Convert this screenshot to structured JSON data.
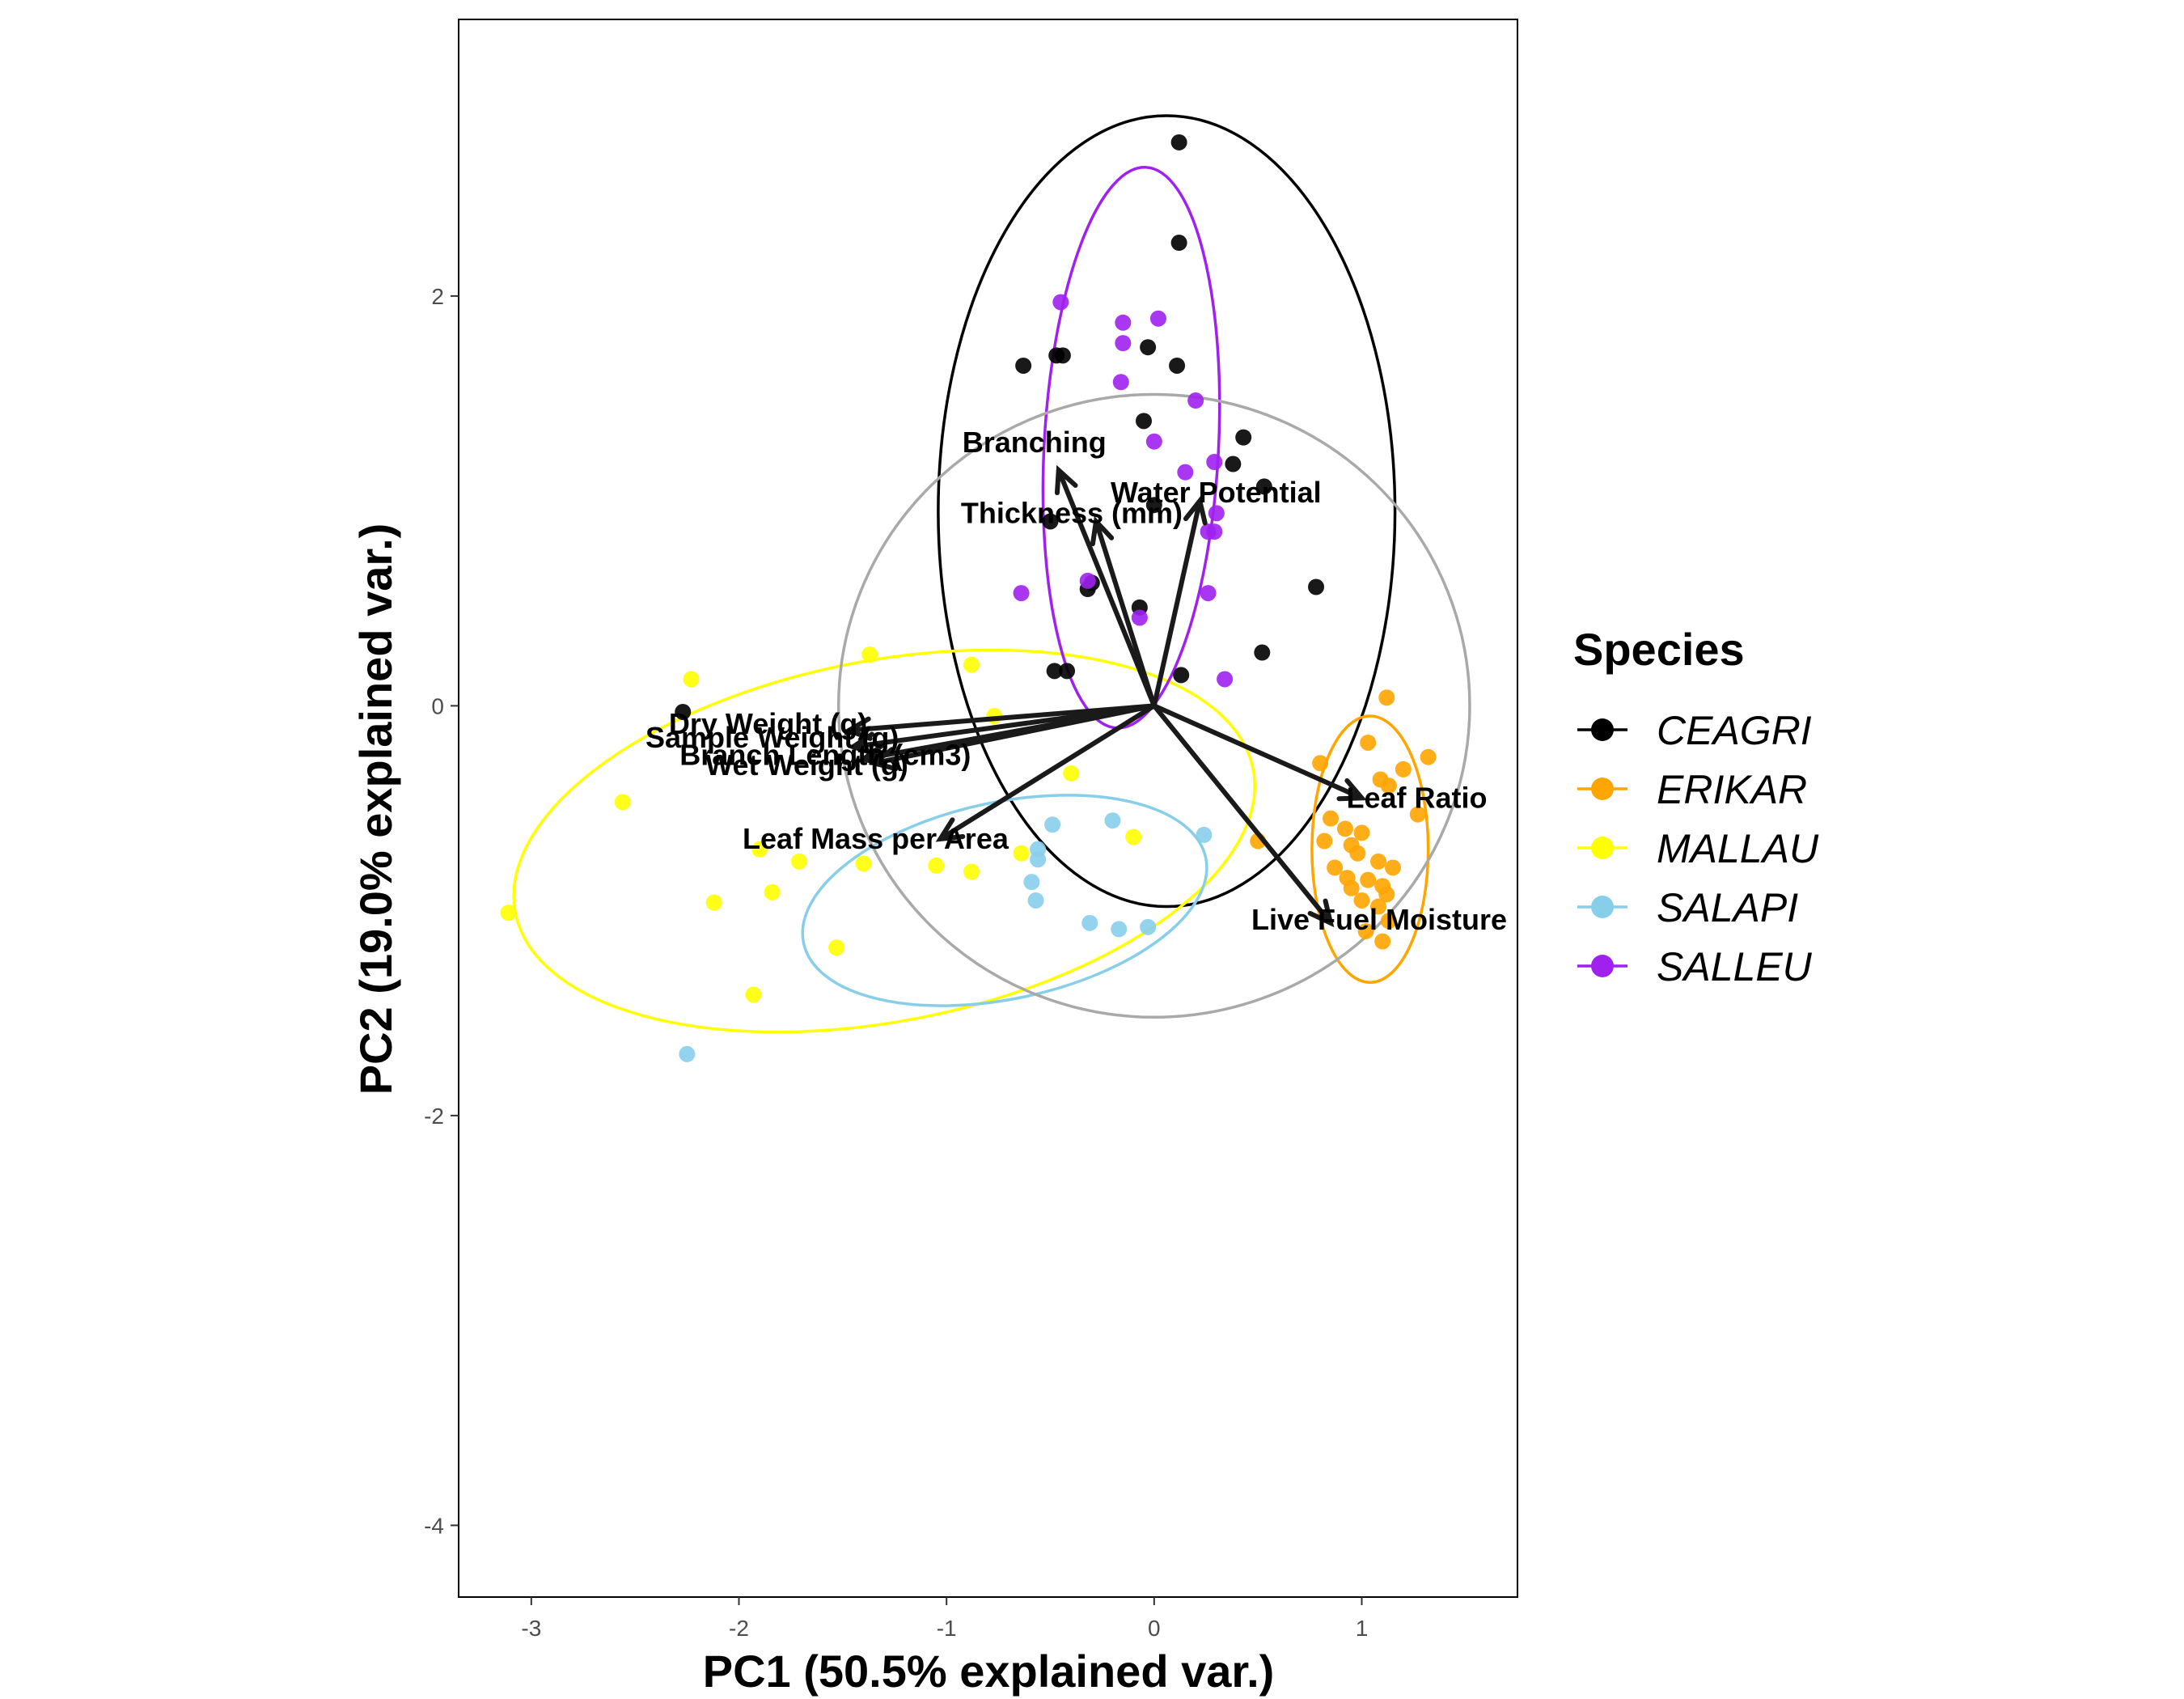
{
  "chart_data": {
    "type": "scatter",
    "xlabel": "PC1 (50.5% explained var.)",
    "ylabel": "PC2 (19.0% explained var.)",
    "xlim": [
      -3.35,
      1.75
    ],
    "ylim": [
      -4.35,
      3.35
    ],
    "xticks": [
      "-3",
      "-2",
      "-1",
      "0",
      "1"
    ],
    "yticks": [
      "-4",
      "-2",
      "0",
      "2"
    ],
    "xtick_values": [
      -3,
      -2,
      -1,
      0,
      1
    ],
    "ytick_values": [
      -4,
      -2,
      0,
      2
    ],
    "grid": false,
    "legend": {
      "title": "Species",
      "position": "right"
    },
    "series": [
      {
        "name": "CEAGRI",
        "color": "#000000",
        "points": [
          [
            0.12,
            2.75
          ],
          [
            0.12,
            2.26
          ],
          [
            -0.63,
            1.66
          ],
          [
            -0.47,
            1.71
          ],
          [
            -0.44,
            1.71
          ],
          [
            -0.03,
            1.75
          ],
          [
            0.11,
            1.66
          ],
          [
            -0.05,
            1.39
          ],
          [
            0.43,
            1.31
          ],
          [
            0.38,
            1.18
          ],
          [
            0.53,
            1.07
          ],
          [
            0.0,
            0.98
          ],
          [
            -0.5,
            0.9
          ],
          [
            -0.3,
            0.6
          ],
          [
            -0.32,
            0.57
          ],
          [
            -0.07,
            0.48
          ],
          [
            0.78,
            0.58
          ],
          [
            -0.48,
            0.17
          ],
          [
            -0.42,
            0.17
          ],
          [
            0.52,
            0.26
          ],
          [
            0.13,
            0.15
          ],
          [
            -2.27,
            -0.03
          ]
        ]
      },
      {
        "name": "ERIKAR",
        "color": "#FFA500",
        "points": [
          [
            1.12,
            0.04
          ],
          [
            0.8,
            -0.28
          ],
          [
            1.03,
            -0.18
          ],
          [
            1.32,
            -0.25
          ],
          [
            1.2,
            -0.31
          ],
          [
            1.09,
            -0.36
          ],
          [
            1.13,
            -0.39
          ],
          [
            1.27,
            -0.53
          ],
          [
            0.85,
            -0.55
          ],
          [
            0.92,
            -0.6
          ],
          [
            1.0,
            -0.62
          ],
          [
            0.95,
            -0.68
          ],
          [
            0.82,
            -0.66
          ],
          [
            0.98,
            -0.72
          ],
          [
            1.08,
            -0.76
          ],
          [
            1.15,
            -0.79
          ],
          [
            0.87,
            -0.79
          ],
          [
            0.93,
            -0.84
          ],
          [
            1.03,
            -0.85
          ],
          [
            1.1,
            -0.88
          ],
          [
            1.12,
            -0.92
          ],
          [
            0.95,
            -0.89
          ],
          [
            1.0,
            -0.95
          ],
          [
            1.08,
            -0.98
          ],
          [
            1.13,
            -1.05
          ],
          [
            1.02,
            -1.1
          ],
          [
            1.1,
            -1.15
          ],
          [
            0.5,
            -0.66
          ]
        ]
      },
      {
        "name": "MALLAU",
        "color": "#FFFF00",
        "points": [
          [
            -2.23,
            0.13
          ],
          [
            -1.37,
            0.25
          ],
          [
            -0.88,
            0.2
          ],
          [
            -0.77,
            -0.05
          ],
          [
            -0.4,
            -0.33
          ],
          [
            -2.56,
            -0.47
          ],
          [
            -1.9,
            -0.7
          ],
          [
            -1.71,
            -0.76
          ],
          [
            -1.4,
            -0.77
          ],
          [
            -1.05,
            -0.78
          ],
          [
            -0.88,
            -0.81
          ],
          [
            -0.64,
            -0.72
          ],
          [
            -0.1,
            -0.64
          ],
          [
            -2.12,
            -0.96
          ],
          [
            -1.84,
            -0.91
          ],
          [
            -1.53,
            -1.18
          ],
          [
            -1.93,
            -1.41
          ],
          [
            -3.11,
            -1.01
          ]
        ]
      },
      {
        "name": "SALAPI",
        "color": "#87CEEB",
        "points": [
          [
            -0.49,
            -0.58
          ],
          [
            -0.2,
            -0.56
          ],
          [
            0.24,
            -0.63
          ],
          [
            -0.56,
            -0.7
          ],
          [
            -0.56,
            -0.75
          ],
          [
            -0.59,
            -0.86
          ],
          [
            -0.57,
            -0.95
          ],
          [
            -0.31,
            -1.06
          ],
          [
            -0.17,
            -1.09
          ],
          [
            -0.03,
            -1.08
          ],
          [
            -2.25,
            -1.7
          ]
        ]
      },
      {
        "name": "SALLEU",
        "color": "#A020F0",
        "points": [
          [
            -0.45,
            1.97
          ],
          [
            -0.15,
            1.87
          ],
          [
            0.02,
            1.89
          ],
          [
            -0.15,
            1.77
          ],
          [
            -0.16,
            1.58
          ],
          [
            0.2,
            1.49
          ],
          [
            0.0,
            1.29
          ],
          [
            0.29,
            1.19
          ],
          [
            0.15,
            1.14
          ],
          [
            0.3,
            0.94
          ],
          [
            0.29,
            0.85
          ],
          [
            0.26,
            0.85
          ],
          [
            -0.32,
            0.61
          ],
          [
            0.26,
            0.55
          ],
          [
            -0.64,
            0.55
          ],
          [
            -0.07,
            0.43
          ],
          [
            0.34,
            0.13
          ]
        ]
      }
    ],
    "ellipses": [
      {
        "name": "CEAGRI",
        "color": "#000000",
        "cx": 0.06,
        "cy": 0.95,
        "rx": 1.1,
        "ry": 1.93,
        "angle": 0
      },
      {
        "name": "ERIKAR",
        "color": "#FFA500",
        "cx": 1.04,
        "cy": -0.7,
        "rx": 0.28,
        "ry": 0.65,
        "angle": 0
      },
      {
        "name": "MALLAU",
        "color": "#FFFF00",
        "cx": -1.3,
        "cy": -0.66,
        "rx": 1.81,
        "ry": 0.88,
        "angle": 11
      },
      {
        "name": "SALAPI",
        "color": "#87CEEB",
        "cx": -0.72,
        "cy": -0.95,
        "rx": 0.99,
        "ry": 0.48,
        "angle": 12
      },
      {
        "name": "SALLEU",
        "color": "#A020F0",
        "cx": -0.11,
        "cy": 1.26,
        "rx": 0.42,
        "ry": 1.37,
        "angle": -3
      },
      {
        "name": "all",
        "color": "#A9A9A9",
        "cx": 0.0,
        "cy": 0.0,
        "rx": 1.52,
        "ry": 1.52,
        "angle": 0
      }
    ],
    "loadings": [
      {
        "label": "Branching",
        "x": -0.46,
        "y": 1.15
      },
      {
        "label": "Water Potential",
        "x": 0.22,
        "y": 1.0
      },
      {
        "label": "Thickness (mm)",
        "x": -0.28,
        "y": 0.9
      },
      {
        "label": "Dry Weight (g)",
        "x": -1.47,
        "y": -0.12
      },
      {
        "label": "Sample Weight (g)",
        "x": -1.45,
        "y": -0.2
      },
      {
        "label": "Wet Weight (g)",
        "x": -1.4,
        "y": -0.26
      },
      {
        "label": "Branch Length (cm3)",
        "x": -1.35,
        "y": -0.28
      },
      {
        "label": "Leaf Mass per Area",
        "x": -1.03,
        "y": -0.65
      },
      {
        "label": "Leaf Ratio",
        "x": 1.0,
        "y": -0.45
      },
      {
        "label": "Live Fuel Moisture",
        "x": 0.85,
        "y": -1.06
      }
    ]
  }
}
